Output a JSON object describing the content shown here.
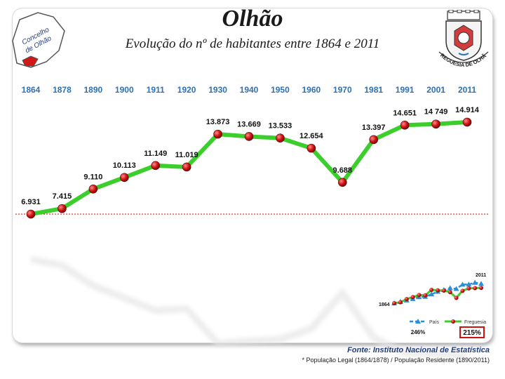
{
  "header": {
    "title": "Olhão",
    "subtitle": "Evolução do nº de habitantes entre 1864 e 2011",
    "map_label_line1": "Concelho",
    "map_label_line2": "de Olhão",
    "crest_label": "FREGUESIA DE OLHÃO"
  },
  "chart_data": [
    {
      "type": "line",
      "x": [
        "1864",
        "1878",
        "1890",
        "1900",
        "1911",
        "1920",
        "1930",
        "1940",
        "1950",
        "1960",
        "1970",
        "1981",
        "1991",
        "2001",
        "2011"
      ],
      "x_labels": [
        "1864",
        "1878",
        "1890",
        "1900",
        "1911",
        "1920",
        "1930",
        "1940",
        "1950",
        "1960",
        "1970",
        "1981",
        "1991",
        "2001",
        "2011"
      ],
      "values": [
        6931,
        7415,
        9110,
        10113,
        11149,
        11019,
        13873,
        13669,
        13533,
        12654,
        9688,
        13397,
        14651,
        14749,
        14914
      ],
      "data_labels": [
        "6.931",
        "7.415",
        "9.110",
        "10.113",
        "11.149",
        "11.019",
        "13.873",
        "13.669",
        "13.533",
        "12.654",
        "9.688",
        "13.397",
        "14.651",
        "14 749",
        "14.914"
      ],
      "reference_line": 6931,
      "ylim": [
        2000,
        16500
      ],
      "grid": false,
      "colors": {
        "line": "#3ccf2c",
        "marker": "#cc1b1b",
        "reference": "#e02020",
        "x_labels": "#2f6fb3"
      }
    },
    {
      "type": "line",
      "x_labels": [
        "1864",
        "2011"
      ],
      "series": [
        {
          "name": "País",
          "values": [
            100,
            111,
            122,
            132,
            146,
            149,
            167,
            187,
            200,
            213,
            208,
            240,
            241,
            254,
            246
          ]
        },
        {
          "name": "Freguesia",
          "values": [
            100,
            107,
            131,
            146,
            161,
            159,
            200,
            197,
            195,
            183,
            140,
            193,
            211,
            213,
            215
          ]
        }
      ],
      "annotations": [
        "246%",
        "215%"
      ],
      "legend": "bottom",
      "colors": {
        "País": "#2a8fd6",
        "Freguesia": "#3ccf2c",
        "marker": "#cc1b1b"
      }
    }
  ],
  "source": "Fonte: Instituto Nacional de Estatística",
  "footnote": "* População Legal (1864/1878) / População Residente (1890/2011)"
}
